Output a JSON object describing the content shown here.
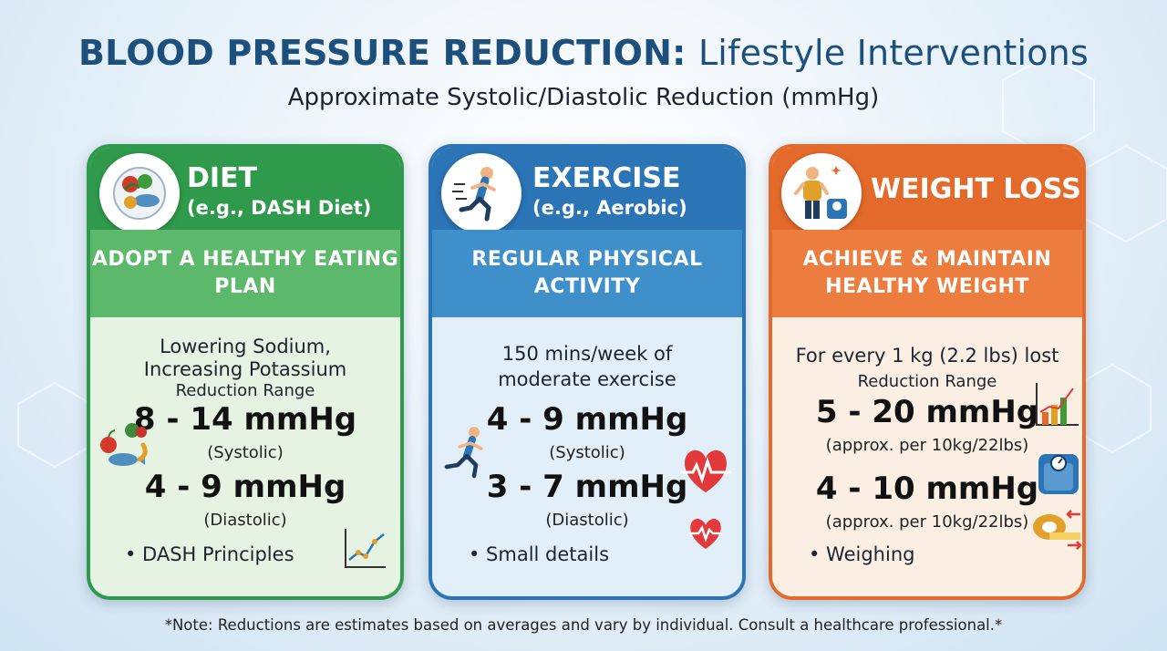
{
  "header": {
    "title_bold": "BLOOD PRESSURE REDUCTION:",
    "title_rest": "Lifestyle Interventions",
    "subtitle": "Approximate Systolic/Diastolic Reduction (mmHg)"
  },
  "cards": [
    {
      "title": "DIET",
      "subtitle": "(e.g., DASH Diet)",
      "band": "ADOPT A HEALTHY EATING PLAN",
      "desc_line1": "Lowering Sodium,",
      "desc_line2": "Increasing Potassium",
      "range_label": "Reduction Range",
      "primary_value": "8 - 14 mmHg",
      "primary_note": "(Systolic)",
      "secondary_value": "4 - 9 mmHg",
      "secondary_note": "(Diastolic)",
      "bullet": "• DASH Principles",
      "colors": {
        "head": "#2f9a4c",
        "band": "#5cb86a",
        "body": "#e6f2e2"
      },
      "icons": [
        "food-plate-icon",
        "fruit-veg-icon",
        "trend-chart-icon"
      ]
    },
    {
      "title": "EXERCISE",
      "subtitle": "(e.g., Aerobic)",
      "band": "REGULAR PHYSICAL ACTIVITY",
      "desc_line1": "150 mins/week of",
      "desc_line2": "moderate exercise",
      "primary_value": "4 - 9 mmHg",
      "primary_note": "(Systolic)",
      "secondary_value": "3 - 7 mmHg",
      "secondary_note": "(Diastolic)",
      "bullet": "• Small details",
      "colors": {
        "head": "#2b74b6",
        "band": "#3f8fcb",
        "body": "#e2eef8"
      },
      "icons": [
        "runner-icon",
        "heart-pulse-icon"
      ]
    },
    {
      "title": "WEIGHT LOSS",
      "band": "ACHIEVE & MAINTAIN HEALTHY WEIGHT",
      "desc_line1": "For every 1 kg (2.2 lbs) lost",
      "range_label": "Reduction Range",
      "primary_value": "5 - 20 mmHg",
      "primary_note": "(approx. per 10kg/22lbs)",
      "secondary_value": "4 - 10 mmHg",
      "secondary_note": "(approx. per 10kg/22lbs)",
      "bullet": "• Weighing",
      "colors": {
        "head": "#e36a2a",
        "band": "#ec7d3e",
        "body": "#fbeee3"
      },
      "icons": [
        "person-scale-icon",
        "bar-chart-icon",
        "scale-icon",
        "tape-measure-icon"
      ]
    }
  ],
  "footer": {
    "note": "*Note: Reductions are estimates based on averages and vary by individual. Consult a healthcare professional.*"
  }
}
